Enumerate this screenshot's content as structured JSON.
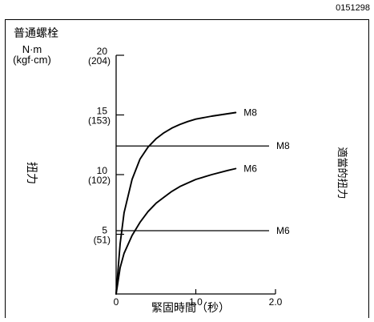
{
  "figure_id": "0151298",
  "chart_data": {
    "type": "line",
    "title": "普通螺栓",
    "ylabel": "扭力",
    "y_unit": "N·m",
    "y_unit_alt": "(kgf·cm)",
    "xlabel": "緊固時間（秒）",
    "right_label": "適當的扭力",
    "xlim": [
      0,
      2.0
    ],
    "ylim": [
      0,
      20
    ],
    "x_ticks": [
      {
        "value": 0,
        "label": "0"
      },
      {
        "value": 1.0,
        "label": "1.0"
      },
      {
        "value": 2.0,
        "label": "2.0"
      }
    ],
    "y_ticks": [
      {
        "value": 20,
        "label": "20",
        "sub": "(204)"
      },
      {
        "value": 15,
        "label": "15",
        "sub": "(153)"
      },
      {
        "value": 10,
        "label": "10",
        "sub": "(102)"
      },
      {
        "value": 5,
        "label": "5",
        "sub": "(51)"
      }
    ],
    "series": [
      {
        "name": "M8",
        "points": [
          [
            0,
            0
          ],
          [
            0.05,
            4.2
          ],
          [
            0.1,
            6.8
          ],
          [
            0.2,
            9.6
          ],
          [
            0.3,
            11.3
          ],
          [
            0.4,
            12.3
          ],
          [
            0.5,
            13.0
          ],
          [
            0.6,
            13.5
          ],
          [
            0.7,
            13.9
          ],
          [
            0.8,
            14.2
          ],
          [
            0.9,
            14.45
          ],
          [
            1.0,
            14.65
          ],
          [
            1.2,
            14.9
          ],
          [
            1.4,
            15.1
          ],
          [
            1.5,
            15.2
          ]
        ]
      },
      {
        "name": "M6",
        "points": [
          [
            0,
            0
          ],
          [
            0.05,
            2.2
          ],
          [
            0.1,
            3.4
          ],
          [
            0.2,
            4.9
          ],
          [
            0.3,
            6.0
          ],
          [
            0.4,
            6.9
          ],
          [
            0.5,
            7.6
          ],
          [
            0.6,
            8.1
          ],
          [
            0.7,
            8.6
          ],
          [
            0.8,
            9.0
          ],
          [
            0.9,
            9.3
          ],
          [
            1.0,
            9.6
          ],
          [
            1.2,
            10.0
          ],
          [
            1.4,
            10.35
          ],
          [
            1.5,
            10.5
          ]
        ]
      }
    ],
    "reference_lines": [
      {
        "name": "M8",
        "value": 12.4
      },
      {
        "name": "M6",
        "value": 5.3
      }
    ]
  }
}
